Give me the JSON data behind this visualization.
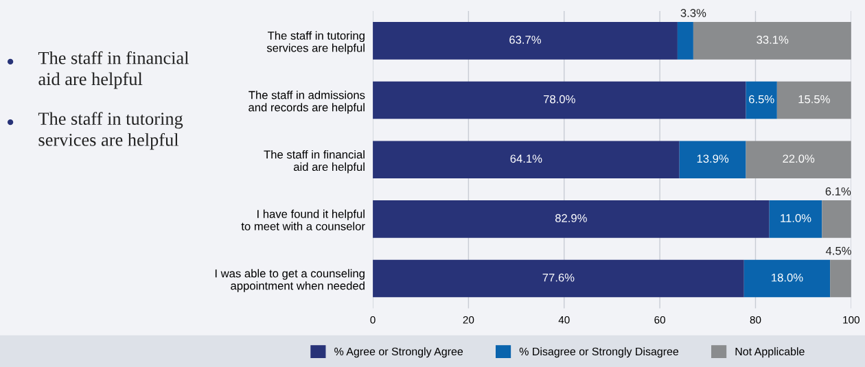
{
  "chart_data": {
    "type": "bar",
    "orientation": "horizontal",
    "stacked": true,
    "categories": [
      "The staff in tutoring\nservices are helpful",
      "The staff in admissions\nand records are helpful",
      "The staff in financial\naid are helpful",
      "I have found it helpful\nto meet with a counselor",
      "I was able to get a counseling\nappointment when needed"
    ],
    "series": [
      {
        "name": "% Agree or Strongly Agree",
        "color": "#283378",
        "values": [
          63.7,
          78.0,
          64.1,
          82.9,
          77.6
        ],
        "value_labels": [
          "63.7%",
          "78.0%",
          "64.1%",
          "82.9%",
          "77.6%"
        ]
      },
      {
        "name": "% Disagree or Strongly Disagree",
        "color": "#0a64ad",
        "values": [
          3.3,
          6.5,
          13.9,
          11.0,
          18.0
        ],
        "value_labels": [
          "3.3%",
          "6.5%",
          "13.9%",
          "11.0%",
          "18.0%"
        ]
      },
      {
        "name": "Not Applicable",
        "color": "#8a8c8e",
        "values": [
          33.1,
          15.5,
          22.0,
          6.1,
          4.5
        ],
        "value_labels": [
          "33.1%",
          "15.5%",
          "22.0%",
          "6.1%",
          "4.5%"
        ]
      }
    ],
    "xlim": [
      0,
      100
    ],
    "xticks": [
      0,
      20,
      40,
      60,
      80,
      100
    ],
    "grid": "x",
    "legend": "bottom",
    "annotations": [
      "The staff in financial\naid are helpful",
      "The staff in tutoring\nservices are helpful"
    ]
  }
}
